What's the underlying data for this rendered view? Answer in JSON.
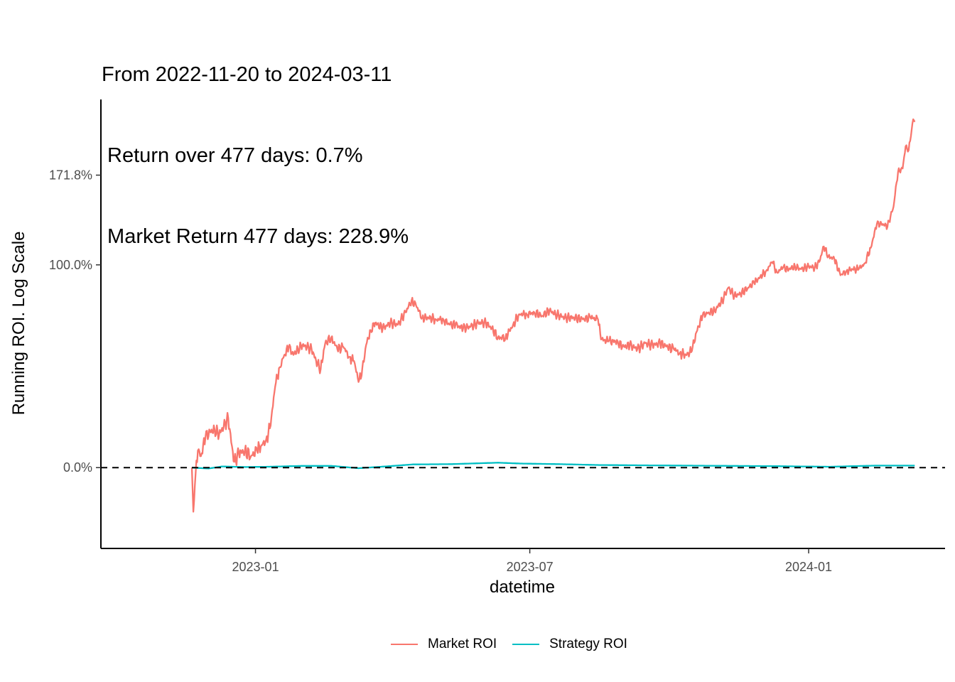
{
  "title_lines": [
    "From 2022-11-20 to 2024-03-11",
    " Return over 477 days: 0.7%",
    " Market Return 477 days: 228.9%"
  ],
  "chart_data": {
    "type": "line",
    "xlabel": "datetime",
    "ylabel": "Running ROI. Log Scale",
    "y_scale": "log1p",
    "x_ticks": [
      "2023-01",
      "2023-07",
      "2024-01"
    ],
    "y_ticks": [
      "0.0%",
      "100.0%",
      "171.8%"
    ],
    "xlim": [
      "2022-09-21",
      "2024-03-31"
    ],
    "ylim_percent": [
      -19.0,
      228.9
    ],
    "hline": {
      "y_percent": 0.0,
      "style": "dashed",
      "color": "#000000"
    },
    "grid": false,
    "legend_position": "bottom",
    "series": [
      {
        "name": "Market ROI",
        "color": "#F8766D",
        "points": [
          [
            "2022-11-20",
            0.0
          ],
          [
            "2022-11-21",
            -14.0
          ],
          [
            "2022-11-22",
            -6.0
          ],
          [
            "2022-11-24",
            6.0
          ],
          [
            "2022-11-26",
            4.0
          ],
          [
            "2022-11-29",
            11.0
          ],
          [
            "2022-12-02",
            13.0
          ],
          [
            "2022-12-05",
            14.0
          ],
          [
            "2022-12-08",
            12.0
          ],
          [
            "2022-12-11",
            15.0
          ],
          [
            "2022-12-14",
            18.5
          ],
          [
            "2022-12-16",
            9.0
          ],
          [
            "2022-12-18",
            2.0
          ],
          [
            "2022-12-21",
            5.0
          ],
          [
            "2022-12-25",
            6.0
          ],
          [
            "2022-12-29",
            4.0
          ],
          [
            "2023-01-02",
            6.0
          ],
          [
            "2023-01-05",
            8.0
          ],
          [
            "2023-01-08",
            10.0
          ],
          [
            "2023-01-11",
            15.5
          ],
          [
            "2023-01-14",
            32.0
          ],
          [
            "2023-01-17",
            41.0
          ],
          [
            "2023-01-20",
            47.0
          ],
          [
            "2023-01-23",
            51.0
          ],
          [
            "2023-01-26",
            47.0
          ],
          [
            "2023-01-29",
            50.0
          ],
          [
            "2023-02-01",
            52.0
          ],
          [
            "2023-02-04",
            51.0
          ],
          [
            "2023-02-07",
            50.0
          ],
          [
            "2023-02-10",
            44.0
          ],
          [
            "2023-02-13",
            40.0
          ],
          [
            "2023-02-16",
            53.0
          ],
          [
            "2023-02-20",
            56.0
          ],
          [
            "2023-02-24",
            50.0
          ],
          [
            "2023-02-28",
            51.0
          ],
          [
            "2023-03-04",
            46.0
          ],
          [
            "2023-03-07",
            44.0
          ],
          [
            "2023-03-10",
            34.0
          ],
          [
            "2023-03-12",
            37.0
          ],
          [
            "2023-03-15",
            52.0
          ],
          [
            "2023-03-18",
            60.0
          ],
          [
            "2023-03-21",
            64.0
          ],
          [
            "2023-03-26",
            61.0
          ],
          [
            "2023-03-31",
            64.0
          ],
          [
            "2023-04-05",
            63.0
          ],
          [
            "2023-04-10",
            70.0
          ],
          [
            "2023-04-14",
            77.0
          ],
          [
            "2023-04-17",
            74.0
          ],
          [
            "2023-04-21",
            67.0
          ],
          [
            "2023-04-25",
            67.0
          ],
          [
            "2023-04-30",
            66.0
          ],
          [
            "2023-05-05",
            66.0
          ],
          [
            "2023-05-09",
            63.0
          ],
          [
            "2023-05-13",
            63.0
          ],
          [
            "2023-05-18",
            61.0
          ],
          [
            "2023-05-23",
            62.0
          ],
          [
            "2023-05-28",
            64.0
          ],
          [
            "2023-06-02",
            64.0
          ],
          [
            "2023-06-06",
            61.0
          ],
          [
            "2023-06-10",
            56.0
          ],
          [
            "2023-06-15",
            56.0
          ],
          [
            "2023-06-20",
            63.0
          ],
          [
            "2023-06-24",
            69.0
          ],
          [
            "2023-06-29",
            69.0
          ],
          [
            "2023-07-04",
            70.0
          ],
          [
            "2023-07-09",
            68.0
          ],
          [
            "2023-07-14",
            71.0
          ],
          [
            "2023-07-18",
            69.0
          ],
          [
            "2023-07-24",
            67.0
          ],
          [
            "2023-07-30",
            67.0
          ],
          [
            "2023-08-05",
            66.0
          ],
          [
            "2023-08-10",
            67.0
          ],
          [
            "2023-08-15",
            66.0
          ],
          [
            "2023-08-17",
            55.0
          ],
          [
            "2023-08-22",
            54.0
          ],
          [
            "2023-08-28",
            54.0
          ],
          [
            "2023-08-31",
            51.0
          ],
          [
            "2023-09-05",
            52.0
          ],
          [
            "2023-09-10",
            50.0
          ],
          [
            "2023-09-15",
            53.0
          ],
          [
            "2023-09-20",
            52.0
          ],
          [
            "2023-09-25",
            53.0
          ],
          [
            "2023-09-30",
            51.0
          ],
          [
            "2023-10-04",
            50.0
          ],
          [
            "2023-10-08",
            48.0
          ],
          [
            "2023-10-12",
            47.0
          ],
          [
            "2023-10-16",
            49.0
          ],
          [
            "2023-10-19",
            59.0
          ],
          [
            "2023-10-23",
            68.0
          ],
          [
            "2023-10-27",
            70.0
          ],
          [
            "2023-10-31",
            71.0
          ],
          [
            "2023-11-05",
            77.0
          ],
          [
            "2023-11-09",
            85.0
          ],
          [
            "2023-11-13",
            80.0
          ],
          [
            "2023-11-17",
            81.0
          ],
          [
            "2023-11-22",
            85.0
          ],
          [
            "2023-11-26",
            88.0
          ],
          [
            "2023-11-30",
            92.0
          ],
          [
            "2023-12-04",
            96.0
          ],
          [
            "2023-12-08",
            102.0
          ],
          [
            "2023-12-11",
            95.0
          ],
          [
            "2023-12-15",
            98.0
          ],
          [
            "2023-12-19",
            97.0
          ],
          [
            "2023-12-23",
            99.0
          ],
          [
            "2023-12-27",
            97.0
          ],
          [
            "2024-01-01",
            99.0
          ],
          [
            "2024-01-05",
            98.0
          ],
          [
            "2024-01-08",
            102.0
          ],
          [
            "2024-01-11",
            113.0
          ],
          [
            "2024-01-14",
            106.0
          ],
          [
            "2024-01-18",
            104.0
          ],
          [
            "2024-01-22",
            93.0
          ],
          [
            "2024-01-26",
            96.0
          ],
          [
            "2024-01-30",
            97.0
          ],
          [
            "2024-02-03",
            97.0
          ],
          [
            "2024-02-07",
            101.0
          ],
          [
            "2024-02-11",
            112.0
          ],
          [
            "2024-02-15",
            130.0
          ],
          [
            "2024-02-19",
            130.0
          ],
          [
            "2024-02-22",
            128.0
          ],
          [
            "2024-02-26",
            144.0
          ],
          [
            "2024-02-29",
            175.0
          ],
          [
            "2024-03-03",
            178.0
          ],
          [
            "2024-03-05",
            200.0
          ],
          [
            "2024-03-07",
            196.0
          ],
          [
            "2024-03-09",
            218.0
          ],
          [
            "2024-03-10",
            229.0
          ],
          [
            "2024-03-11",
            226.0
          ]
        ]
      },
      {
        "name": "Strategy ROI",
        "color": "#00BFC4",
        "points": [
          [
            "2022-11-20",
            0.0
          ],
          [
            "2022-12-01",
            -0.3
          ],
          [
            "2022-12-10",
            0.4
          ],
          [
            "2022-12-25",
            0.2
          ],
          [
            "2023-01-10",
            0.3
          ],
          [
            "2023-02-01",
            0.6
          ],
          [
            "2023-02-20",
            0.6
          ],
          [
            "2023-03-10",
            -0.2
          ],
          [
            "2023-03-25",
            0.3
          ],
          [
            "2023-04-15",
            1.1
          ],
          [
            "2023-05-10",
            1.2
          ],
          [
            "2023-06-10",
            1.7
          ],
          [
            "2023-06-25",
            1.4
          ],
          [
            "2023-07-20",
            1.2
          ],
          [
            "2023-08-15",
            0.9
          ],
          [
            "2023-09-10",
            0.8
          ],
          [
            "2023-10-10",
            0.7
          ],
          [
            "2023-11-10",
            0.6
          ],
          [
            "2023-12-10",
            0.5
          ],
          [
            "2024-01-15",
            0.3
          ],
          [
            "2024-02-15",
            0.7
          ],
          [
            "2024-03-11",
            0.7
          ]
        ]
      }
    ]
  }
}
